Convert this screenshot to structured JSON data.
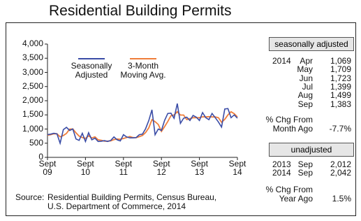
{
  "chart_data": {
    "type": "line",
    "title": "Residential Building Permits",
    "categories": [
      "Sept\n09",
      null,
      null,
      null,
      null,
      null,
      null,
      null,
      null,
      null,
      null,
      null,
      "Sept\n10",
      null,
      null,
      null,
      null,
      null,
      null,
      null,
      null,
      null,
      null,
      null,
      "Sept\n11",
      null,
      null,
      null,
      null,
      null,
      null,
      null,
      null,
      null,
      null,
      null,
      "Sept\n12",
      null,
      null,
      null,
      null,
      null,
      null,
      null,
      null,
      null,
      null,
      null,
      "Sept\n13",
      null,
      null,
      null,
      null,
      null,
      null,
      null,
      null,
      null,
      null,
      null,
      "Sept\n14"
    ],
    "series": [
      {
        "name": "Seasonally\nAdjusted",
        "color": "#3a4ca6",
        "values": [
          800,
          820,
          850,
          830,
          500,
          980,
          1060,
          950,
          1000,
          650,
          600,
          850,
          560,
          870,
          620,
          680,
          560,
          570,
          590,
          560,
          600,
          720,
          620,
          580,
          800,
          720,
          690,
          690,
          700,
          800,
          820,
          1010,
          1300,
          1680,
          800,
          1000,
          950,
          1300,
          1550,
          1560,
          1380,
          1900,
          1200,
          1380,
          1420,
          1300,
          1480,
          1420,
          1300,
          1580,
          1400,
          1330,
          1550,
          1400,
          1250,
          1069,
          1709,
          1723,
          1399,
          1499,
          1383
        ]
      },
      {
        "name": "3-Month\nMoving Avg.",
        "color": "#ef7d3a",
        "values": [
          780,
          800,
          833,
          833,
          727,
          770,
          847,
          997,
          1003,
          867,
          750,
          700,
          670,
          760,
          683,
          723,
          620,
          603,
          573,
          573,
          583,
          627,
          647,
          640,
          667,
          700,
          737,
          700,
          693,
          730,
          773,
          877,
          1043,
          1330,
          1260,
          1160,
          917,
          1083,
          1267,
          1470,
          1497,
          1613,
          1493,
          1493,
          1333,
          1367,
          1400,
          1400,
          1400,
          1433,
          1427,
          1437,
          1427,
          1427,
          1400,
          1240,
          1343,
          1500,
          1610,
          1540,
          1427
        ]
      }
    ],
    "ylim": [
      0,
      4000
    ],
    "yticks": [
      0,
      500,
      {
        "value": 1000,
        "label": "1,000"
      },
      {
        "value": 1500,
        "label": "1,500"
      },
      {
        "value": 2000,
        "label": "2,000"
      },
      {
        "value": 2500,
        "label": "2,500"
      },
      {
        "value": 3000,
        "label": "3,000"
      },
      {
        "value": 3500,
        "label": "3,500"
      },
      {
        "value": 4000,
        "label": "4,000"
      }
    ],
    "grid": false,
    "source_label": "Source:",
    "source": "Residential Building Permits, Census Bureau,\nU.S. Department of Commerce, 2014"
  },
  "side_panel": {
    "sa_header": "seasonally adjusted",
    "sa_year": "2014",
    "sa_months": [
      "Apr",
      "May",
      "Jun",
      "Jul",
      "Aug",
      "Sep"
    ],
    "sa_values": [
      "1,069",
      "1,709",
      "1,723",
      "1,399",
      "1,499",
      "1,383"
    ],
    "month_chg_label": "% Chg From\nMonth Ago",
    "month_chg_value": "-7.7%",
    "unadj_header": "unadjusted",
    "unadj_rows": [
      [
        "2013",
        "Sep",
        "2,012"
      ],
      [
        "2014",
        "Sep",
        "2,042"
      ]
    ],
    "year_chg_label": "% Chg From\nYear Ago",
    "year_chg_value": "1.5%"
  }
}
